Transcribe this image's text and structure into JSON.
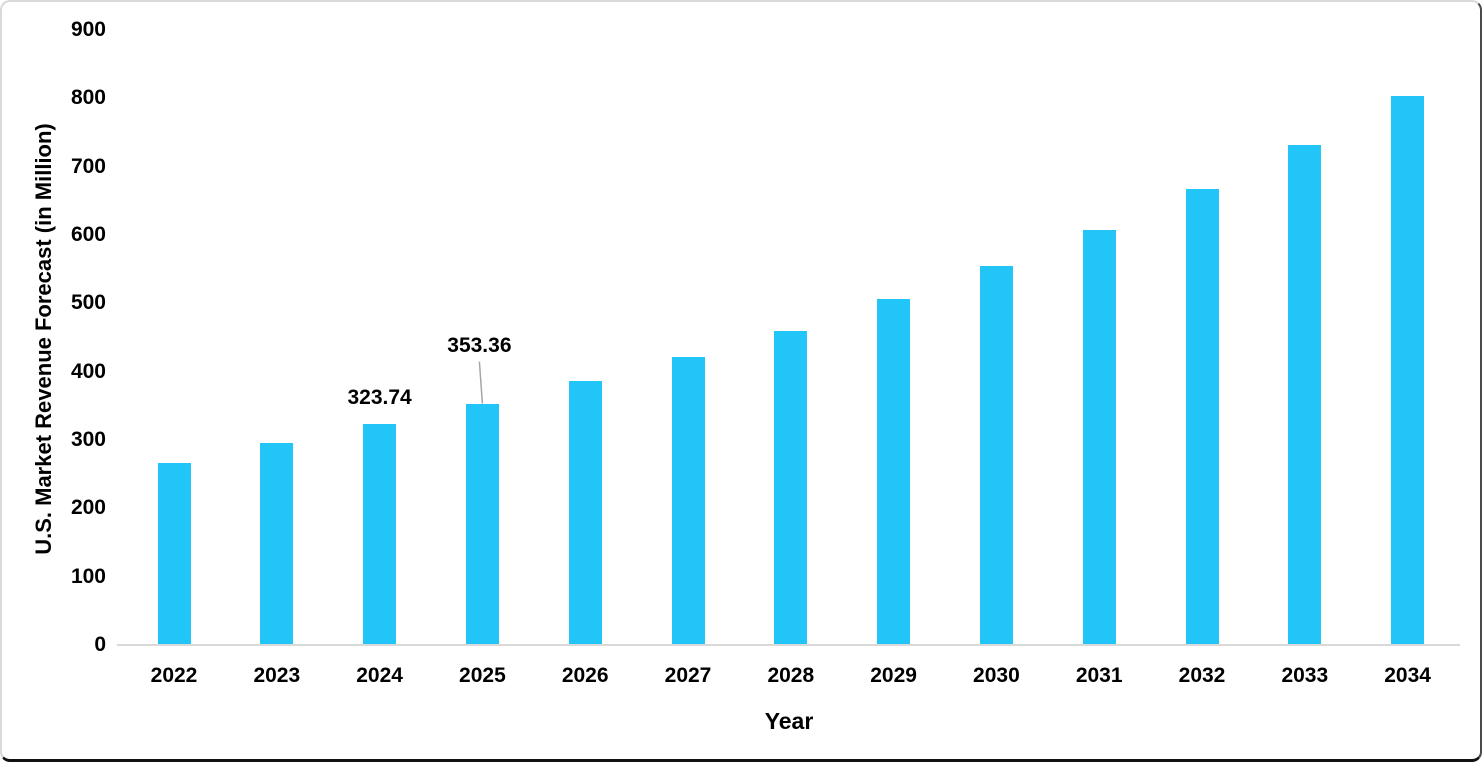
{
  "chart_data": {
    "type": "bar",
    "title": "",
    "xlabel": "Year",
    "ylabel": "U.S. Market Revenue Forecast (in Million)",
    "categories": [
      "2022",
      "2023",
      "2024",
      "2025",
      "2026",
      "2027",
      "2028",
      "2029",
      "2030",
      "2031",
      "2032",
      "2033",
      "2034"
    ],
    "values": [
      267,
      295,
      323.74,
      353.36,
      386,
      422,
      460,
      506,
      555,
      607,
      667,
      731,
      803
    ],
    "ylim": [
      0,
      900
    ],
    "yticks": [
      0,
      100,
      200,
      300,
      400,
      500,
      600,
      700,
      800,
      900
    ],
    "grid": false,
    "legend": null,
    "data_labels": [
      {
        "year": "2024",
        "text": "323.74",
        "has_leader_line": false
      },
      {
        "year": "2025",
        "text": "353.36",
        "has_leader_line": true
      }
    ],
    "colors": {
      "bar": "#22C5F7",
      "axis_line": "#D9D9D9",
      "leader_line": "#A6A6A6",
      "text": "#000000"
    }
  }
}
